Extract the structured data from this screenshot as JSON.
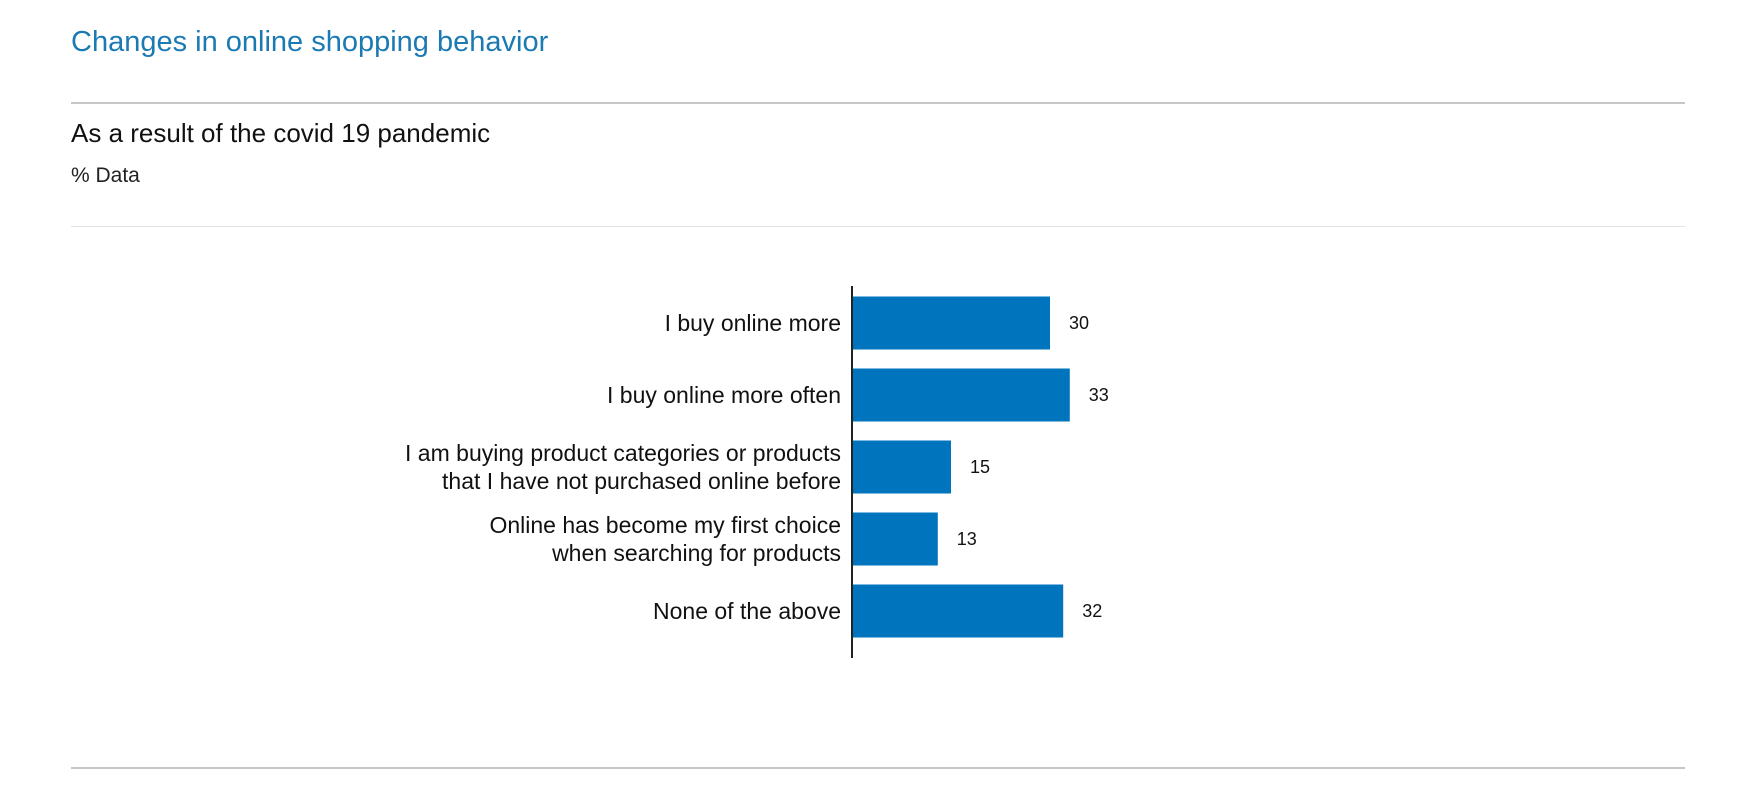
{
  "header": {
    "title": "Changes in online shopping behavior",
    "subtitle": "As a result of the covid 19 pandemic",
    "unit": "% Data"
  },
  "colors": {
    "bar": "#0074bd",
    "title": "#1b7ab3"
  },
  "chart_data": {
    "type": "bar",
    "orientation": "horizontal",
    "categories": [
      "I buy online more",
      "I buy online more often",
      "I am buying product categories or products that I have not purchased online before",
      "Online has become my first choice when searching for products",
      "None of the above"
    ],
    "category_lines": [
      [
        "I buy online more"
      ],
      [
        "I buy online more often"
      ],
      [
        "I am buying product categories or products",
        "that I have not purchased online before"
      ],
      [
        "Online has become my first choice",
        "when searching for products"
      ],
      [
        "None of the above"
      ]
    ],
    "values": [
      30,
      33,
      15,
      13,
      32
    ],
    "data_labels": [
      "30",
      "33",
      "15",
      "13",
      "32"
    ],
    "xlim": [
      0,
      100
    ],
    "grid": false,
    "legend": "none"
  }
}
